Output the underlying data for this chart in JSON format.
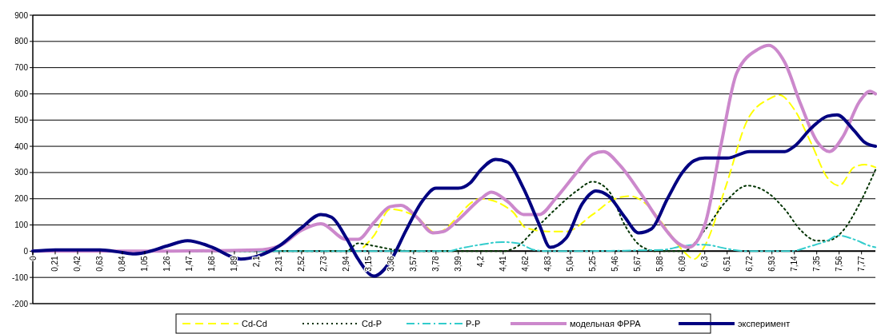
{
  "chart_data": {
    "type": "line",
    "xlim": [
      0,
      7.9
    ],
    "ylim": [
      -200,
      900
    ],
    "yticks": [
      -200,
      -100,
      0,
      100,
      200,
      300,
      400,
      500,
      600,
      700,
      800,
      900
    ],
    "xticks": [
      {
        "value": 0,
        "label": "0"
      },
      {
        "value": 0.21,
        "label": "0,21"
      },
      {
        "value": 0.42,
        "label": "0,42"
      },
      {
        "value": 0.63,
        "label": "0,63"
      },
      {
        "value": 0.84,
        "label": "0,84"
      },
      {
        "value": 1.05,
        "label": "1,05"
      },
      {
        "value": 1.26,
        "label": "1,26"
      },
      {
        "value": 1.47,
        "label": "1,47"
      },
      {
        "value": 1.68,
        "label": "1,68"
      },
      {
        "value": 1.89,
        "label": "1,89"
      },
      {
        "value": 2.1,
        "label": "2,1"
      },
      {
        "value": 2.31,
        "label": "2,31"
      },
      {
        "value": 2.52,
        "label": "2,52"
      },
      {
        "value": 2.73,
        "label": "2,73"
      },
      {
        "value": 2.94,
        "label": "2,94"
      },
      {
        "value": 3.15,
        "label": "3,15"
      },
      {
        "value": 3.36,
        "label": "3,36"
      },
      {
        "value": 3.57,
        "label": "3,57"
      },
      {
        "value": 3.78,
        "label": "3,78"
      },
      {
        "value": 3.99,
        "label": "3,99"
      },
      {
        "value": 4.2,
        "label": "4,2"
      },
      {
        "value": 4.41,
        "label": "4,41"
      },
      {
        "value": 4.62,
        "label": "4,62"
      },
      {
        "value": 4.83,
        "label": "4,83"
      },
      {
        "value": 5.04,
        "label": "5,04"
      },
      {
        "value": 5.25,
        "label": "5,25"
      },
      {
        "value": 5.46,
        "label": "5,46"
      },
      {
        "value": 5.67,
        "label": "5,67"
      },
      {
        "value": 5.88,
        "label": "5,88"
      },
      {
        "value": 6.09,
        "label": "6,09"
      },
      {
        "value": 6.3,
        "label": "6,3"
      },
      {
        "value": 6.51,
        "label": "6,51"
      },
      {
        "value": 6.72,
        "label": "6,72"
      },
      {
        "value": 6.93,
        "label": "6,93"
      },
      {
        "value": 7.14,
        "label": "7,14"
      },
      {
        "value": 7.35,
        "label": "7,35"
      },
      {
        "value": 7.56,
        "label": "7,56"
      },
      {
        "value": 7.77,
        "label": "7,77"
      }
    ],
    "grid": "y",
    "legend": "bottom",
    "series": [
      {
        "name": "Cd-Cd",
        "color": "#ffff00",
        "line_style": "dashed",
        "x": [
          3.1,
          3.2,
          3.35,
          3.6,
          3.78,
          3.99,
          4.2,
          4.5,
          4.62,
          4.83,
          5.0,
          5.25,
          5.46,
          5.6,
          5.75,
          5.95,
          6.1,
          6.2,
          6.3,
          6.5,
          6.7,
          6.9,
          7.0,
          7.14,
          7.3,
          7.45,
          7.56,
          7.7,
          7.8,
          7.9
        ],
        "values": [
          15,
          60,
          160,
          130,
          70,
          null,
          200,
          150,
          90,
          75,
          75,
          140,
          200,
          210,
          180,
          80,
          0,
          -30,
          20,
          250,
          500,
          580,
          595,
          540,
          410,
          280,
          250,
          320,
          330,
          320
        ]
      },
      {
        "name": "Cd-P",
        "color": "#003300",
        "line_style": "dotted",
        "x": [
          0,
          1,
          2,
          2.94,
          3.05,
          3.2,
          3.4,
          3.6,
          4.4,
          4.55,
          4.7,
          4.9,
          5.1,
          5.25,
          5.4,
          5.55,
          5.7,
          5.85,
          6.1,
          6.3,
          6.5,
          6.7,
          6.9,
          7.05,
          7.2,
          7.35,
          7.45,
          7.6,
          7.75,
          7.9
        ],
        "values": [
          0,
          0,
          0,
          0,
          30,
          20,
          5,
          0,
          0,
          20,
          80,
          160,
          230,
          265,
          230,
          100,
          20,
          0,
          0,
          80,
          190,
          250,
          220,
          160,
          80,
          40,
          40,
          80,
          180,
          310
        ]
      },
      {
        "name": "P-P",
        "color": "#33cccc",
        "line_style": "dashdot",
        "x": [
          0,
          2,
          3.9,
          4.0,
          4.2,
          4.4,
          4.55,
          4.7,
          4.85,
          5.9,
          6.1,
          6.3,
          6.5,
          6.7,
          7.1,
          7.3,
          7.45,
          7.55,
          7.7,
          7.85,
          7.9
        ],
        "values": [
          0,
          0,
          0,
          10,
          25,
          35,
          30,
          5,
          0,
          5,
          20,
          25,
          10,
          0,
          0,
          20,
          40,
          60,
          45,
          20,
          15
        ]
      },
      {
        "name": "модельная ФРРА",
        "color": "#cc88cc",
        "line_style": "solid",
        "x": [
          0,
          1,
          2.1,
          2.31,
          2.52,
          2.7,
          2.94,
          3.05,
          3.2,
          3.35,
          3.45,
          3.6,
          3.75,
          3.85,
          3.99,
          4.2,
          4.3,
          4.45,
          4.6,
          4.75,
          4.9,
          5.1,
          5.25,
          5.35,
          5.5,
          5.7,
          5.9,
          6.05,
          6.15,
          6.3,
          6.45,
          6.6,
          6.8,
          6.9,
          7.05,
          7.2,
          7.35,
          7.47,
          7.6,
          7.75,
          7.85,
          7.9
        ],
        "values": [
          0,
          0,
          5,
          20,
          80,
          105,
          45,
          45,
          110,
          170,
          175,
          130,
          70,
          75,
          120,
          200,
          225,
          190,
          140,
          140,
          200,
          300,
          370,
          380,
          330,
          220,
          100,
          30,
          15,
          100,
          400,
          680,
          770,
          785,
          720,
          560,
          420,
          380,
          440,
          570,
          610,
          600
        ]
      },
      {
        "name": "эксперимент",
        "color": "#000080",
        "line_style": "solid",
        "x": [
          0,
          0.21,
          0.63,
          0.84,
          0.95,
          1.05,
          1.26,
          1.45,
          1.68,
          1.89,
          1.95,
          2.1,
          2.31,
          2.52,
          2.7,
          2.8,
          2.94,
          3.05,
          3.2,
          3.35,
          3.5,
          3.65,
          3.78,
          3.99,
          4.1,
          4.2,
          4.34,
          4.45,
          4.6,
          4.75,
          4.85,
          5.0,
          5.15,
          5.28,
          5.4,
          5.55,
          5.68,
          5.8,
          5.95,
          6.09,
          6.2,
          6.3,
          6.51,
          6.72,
          6.93,
          7.05,
          7.14,
          7.3,
          7.45,
          7.54,
          7.7,
          7.8,
          7.9
        ],
        "values": [
          0,
          5,
          5,
          -5,
          -10,
          -5,
          20,
          40,
          15,
          -25,
          -30,
          -20,
          20,
          90,
          140,
          130,
          50,
          -30,
          -95,
          -40,
          80,
          190,
          240,
          240,
          260,
          310,
          350,
          340,
          240,
          100,
          15,
          50,
          180,
          230,
          210,
          130,
          70,
          85,
          200,
          300,
          345,
          355,
          355,
          380,
          380,
          380,
          400,
          470,
          515,
          520,
          460,
          415,
          400
        ]
      }
    ]
  }
}
